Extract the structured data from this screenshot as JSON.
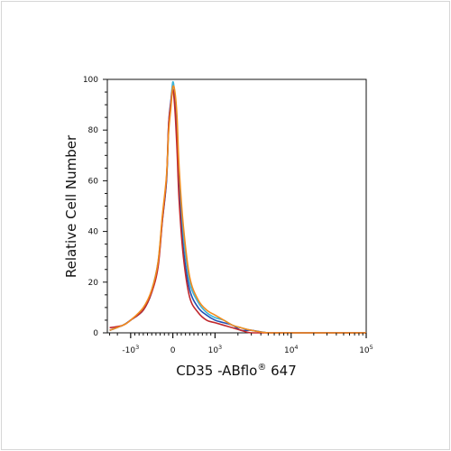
{
  "chart_data": {
    "type": "line",
    "title": "",
    "xlabel": "CD35 -ABflo",
    "xlabel_symbol": "®",
    "xlabel_suffix": " 647",
    "ylabel": "Relative Cell Number",
    "xscale": "biexponential",
    "ylim": [
      0,
      100
    ],
    "yticks": [
      0,
      20,
      40,
      60,
      80,
      100
    ],
    "xticks": [
      {
        "base": "-10",
        "exp": "3",
        "value": -1000
      },
      {
        "base": "0",
        "exp": "",
        "value": 0
      },
      {
        "base": "10",
        "exp": "3",
        "value": 1000
      },
      {
        "base": "10",
        "exp": "4",
        "value": 10000
      },
      {
        "base": "10",
        "exp": "5",
        "value": 100000
      }
    ],
    "grid": false,
    "legend": "none",
    "series": [
      {
        "color": "#3cb4d8",
        "x": [
          -3000,
          -1500,
          -1000,
          -700,
          -500,
          -350,
          -250,
          -150,
          -100,
          -50,
          0,
          50,
          100,
          150,
          250,
          400,
          600,
          800,
          1000,
          1300,
          1700,
          2200,
          3000,
          5000,
          10000,
          100000
        ],
        "y": [
          1,
          3,
          5,
          9,
          17,
          28,
          45,
          60,
          80,
          90,
          99,
          93,
          80,
          60,
          38,
          20,
          12,
          8,
          6,
          5,
          3,
          2,
          1,
          0,
          0,
          0
        ]
      },
      {
        "color": "#1f4fb4",
        "x": [
          -3000,
          -1500,
          -1000,
          -700,
          -500,
          -350,
          -250,
          -150,
          -100,
          -50,
          0,
          50,
          100,
          150,
          250,
          400,
          600,
          800,
          1000,
          1300,
          1700,
          2200,
          3000,
          5000,
          10000,
          100000
        ],
        "y": [
          1,
          3,
          5,
          9,
          16,
          27,
          44,
          60,
          82,
          91,
          96,
          90,
          75,
          55,
          33,
          17,
          10,
          7,
          5,
          4,
          3,
          1,
          1,
          0,
          0,
          0
        ]
      },
      {
        "color": "#c0282d",
        "x": [
          -3000,
          -1500,
          -1000,
          -700,
          -500,
          -350,
          -250,
          -150,
          -100,
          -50,
          0,
          50,
          100,
          150,
          250,
          400,
          600,
          800,
          1000,
          1300,
          1700,
          2200,
          3000,
          5000,
          10000,
          100000
        ],
        "y": [
          2,
          3,
          5,
          9,
          16,
          26,
          44,
          61,
          82,
          90,
          96,
          88,
          72,
          52,
          30,
          14,
          8,
          5,
          4,
          3,
          2,
          1,
          0,
          0,
          0,
          0
        ]
      },
      {
        "color": "#f28c1e",
        "x": [
          -3000,
          -1500,
          -1000,
          -700,
          -500,
          -350,
          -250,
          -150,
          -100,
          -50,
          0,
          50,
          100,
          150,
          250,
          400,
          600,
          800,
          1000,
          1300,
          1700,
          2200,
          3000,
          5000,
          10000,
          100000
        ],
        "y": [
          1,
          3,
          5,
          10,
          17,
          28,
          46,
          62,
          79,
          88,
          97,
          95,
          85,
          65,
          42,
          22,
          13,
          9,
          7,
          5,
          3,
          2,
          1,
          0,
          0,
          0
        ]
      }
    ]
  }
}
